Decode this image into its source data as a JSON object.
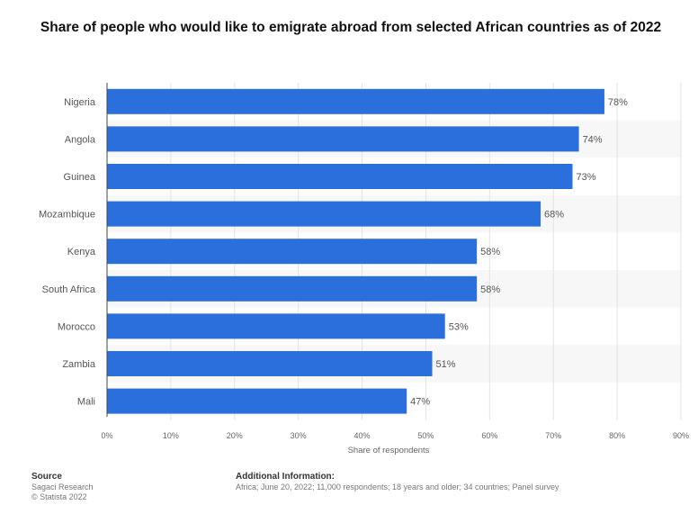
{
  "chart_data": {
    "type": "bar",
    "orientation": "horizontal",
    "title": "Share of people who would like to emigrate abroad from selected African countries as of 2022",
    "categories": [
      "Nigeria",
      "Angola",
      "Guinea",
      "Mozambique",
      "Kenya",
      "South Africa",
      "Morocco",
      "Zambia",
      "Mali"
    ],
    "values": [
      78,
      74,
      73,
      68,
      58,
      58,
      53,
      51,
      47
    ],
    "value_labels": [
      "78%",
      "74%",
      "73%",
      "68%",
      "58%",
      "58%",
      "53%",
      "51%",
      "47%"
    ],
    "xlabel": "Share of respondents",
    "xlim": [
      0,
      90
    ],
    "xticks": [
      "0%",
      "10%",
      "20%",
      "30%",
      "40%",
      "50%",
      "60%",
      "70%",
      "80%",
      "90%"
    ],
    "grid": true,
    "bar_color": "#2b6fdc"
  },
  "footer": {
    "source_heading": "Source",
    "source_line1": "Sagaci Research",
    "source_line2": "© Statista 2022",
    "info_heading": "Additional Information:",
    "info_text": "Africa; June 20, 2022; 11,000 respondents; 18 years and older; 34 countries; Panel survey"
  }
}
